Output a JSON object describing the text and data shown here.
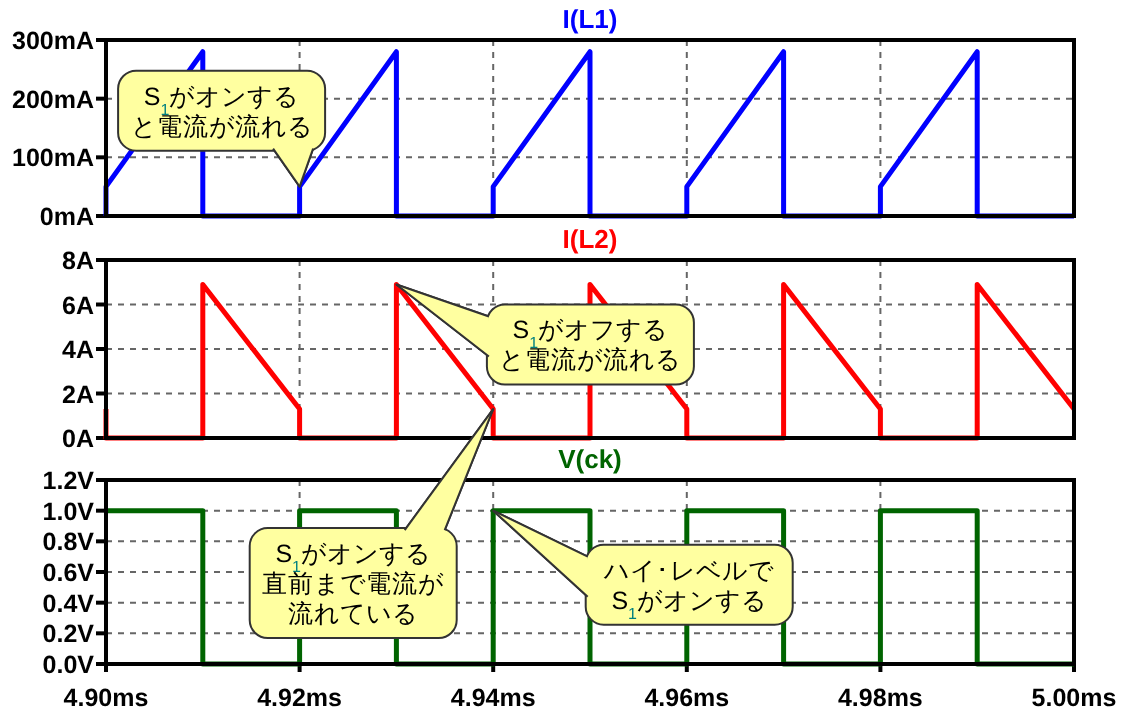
{
  "chart_data": [
    {
      "type": "line",
      "x": [
        4.9,
        4.9,
        4.91,
        4.91,
        4.92,
        4.92,
        4.93,
        4.93,
        4.94,
        4.94,
        4.95,
        4.95,
        4.96,
        4.96,
        4.97,
        4.97,
        4.98,
        4.98,
        4.99,
        4.99,
        5.0
      ],
      "series": [
        {
          "name": "I(L1)",
          "color": "#0000ff",
          "values": [
            0,
            50,
            280,
            0,
            0,
            50,
            280,
            0,
            0,
            50,
            280,
            0,
            0,
            50,
            280,
            0,
            0,
            50,
            280,
            0,
            0
          ]
        }
      ],
      "xlim": [
        4.9,
        5.0
      ],
      "xticks": [
        4.9,
        4.92,
        4.94,
        4.96,
        4.98,
        5.0
      ],
      "ylim": [
        0,
        300
      ],
      "yticks": [
        {
          "value": 0,
          "label": "0mA"
        },
        {
          "value": 100,
          "label": "100mA"
        },
        {
          "value": 200,
          "label": "200mA"
        },
        {
          "value": 300,
          "label": "300mA"
        }
      ],
      "grid": true,
      "tick_labels": "y",
      "annotations": [
        {
          "text": "S$_{1}$がオンすると電流が流れる",
          "x": 4.92,
          "y": 50
        }
      ]
    },
    {
      "type": "line",
      "x": [
        4.9,
        4.9,
        4.91,
        4.91,
        4.92,
        4.92,
        4.93,
        4.93,
        4.94,
        4.94,
        4.95,
        4.95,
        4.96,
        4.96,
        4.97,
        4.97,
        4.98,
        4.98,
        4.99,
        4.99,
        5.0
      ],
      "series": [
        {
          "name": "I(L2)",
          "color": "#ff0000",
          "values": [
            1.3,
            0,
            0,
            6.9,
            1.3,
            0,
            0,
            6.9,
            1.3,
            0,
            0,
            6.9,
            1.3,
            0,
            0,
            6.9,
            1.3,
            0,
            0,
            6.9,
            1.3
          ]
        }
      ],
      "xlim": [
        4.9,
        5.0
      ],
      "xticks": [
        4.9,
        4.92,
        4.94,
        4.96,
        4.98,
        5.0
      ],
      "ylim": [
        0,
        8
      ],
      "yticks": [
        {
          "value": 0,
          "label": "0A"
        },
        {
          "value": 2,
          "label": "2A"
        },
        {
          "value": 4,
          "label": "4A"
        },
        {
          "value": 6,
          "label": "6A"
        },
        {
          "value": 8,
          "label": "8A"
        }
      ],
      "grid": true,
      "tick_labels": "y",
      "annotations": [
        {
          "text": "S$_{1}$がオフすると電流が流れる",
          "x": 4.93,
          "y": 6.9
        },
        {
          "text": "S$_{1}$がオンする直前まで電流が流れている",
          "x": 4.94,
          "y": 1.3
        }
      ]
    },
    {
      "type": "line",
      "x": [
        4.9,
        4.91,
        4.91,
        4.92,
        4.92,
        4.93,
        4.93,
        4.94,
        4.94,
        4.95,
        4.95,
        4.96,
        4.96,
        4.97,
        4.97,
        4.98,
        4.98,
        4.99,
        4.99,
        5.0
      ],
      "series": [
        {
          "name": "V(ck)",
          "color": "#006400",
          "values": [
            1,
            1,
            0,
            0,
            1,
            1,
            0,
            0,
            1,
            1,
            0,
            0,
            1,
            1,
            0,
            0,
            1,
            1,
            0,
            0
          ]
        }
      ],
      "xlim": [
        4.9,
        5.0
      ],
      "xticks": [
        {
          "value": 4.9,
          "label": "4.90ms"
        },
        {
          "value": 4.92,
          "label": "4.92ms"
        },
        {
          "value": 4.94,
          "label": "4.94ms"
        },
        {
          "value": 4.96,
          "label": "4.96ms"
        },
        {
          "value": 4.98,
          "label": "4.98ms"
        },
        {
          "value": 5.0,
          "label": "5.00ms"
        }
      ],
      "ylim": [
        0,
        1.2
      ],
      "yticks": [
        {
          "value": 0,
          "label": "0.0V"
        },
        {
          "value": 0.2,
          "label": "0.2V"
        },
        {
          "value": 0.4,
          "label": "0.4V"
        },
        {
          "value": 0.6,
          "label": "0.6V"
        },
        {
          "value": 0.8,
          "label": "0.8V"
        },
        {
          "value": 1.0,
          "label": "1.0V"
        },
        {
          "value": 1.2,
          "label": "1.2V"
        }
      ],
      "grid": true,
      "annotations": [
        {
          "text": "ハイ･レベルでS$_{1}$がオンする",
          "x": 4.94,
          "y": 1.0
        }
      ]
    }
  ]
}
